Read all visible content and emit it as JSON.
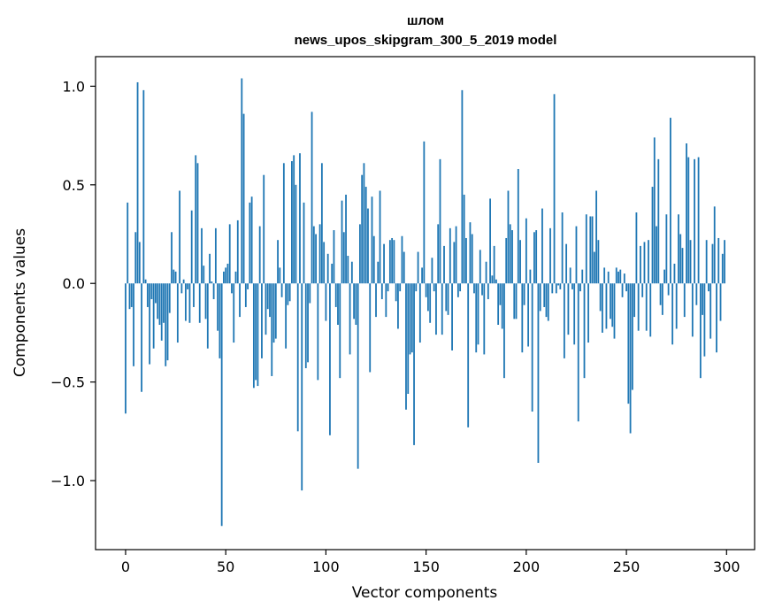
{
  "chart_data": {
    "type": "bar",
    "title": "шлом",
    "subtitle": "news_upos_skipgram_300_5_2019 model",
    "xlabel": "Vector components",
    "ylabel": "Components values",
    "xlim": [
      -15,
      314
    ],
    "ylim": [
      -1.35,
      1.15
    ],
    "xticks": [
      0,
      50,
      100,
      150,
      200,
      250,
      300
    ],
    "yticks": [
      -1.0,
      -0.5,
      0.0,
      0.5,
      1.0
    ],
    "ytick_labels": [
      "−1.0",
      "−0.5",
      "0.0",
      "0.5",
      "1.0"
    ],
    "bar_color": "#1f77b4",
    "grid": false,
    "x_start": 0,
    "values": [
      -0.66,
      0.41,
      -0.13,
      -0.12,
      -0.42,
      0.26,
      1.02,
      0.21,
      -0.55,
      0.98,
      0.02,
      -0.12,
      -0.41,
      -0.08,
      -0.33,
      -0.1,
      -0.18,
      -0.21,
      -0.29,
      -0.2,
      -0.42,
      -0.39,
      -0.15,
      0.26,
      0.07,
      0.06,
      -0.3,
      0.47,
      -0.05,
      0.02,
      -0.19,
      -0.03,
      -0.2,
      0.37,
      -0.12,
      0.65,
      0.61,
      -0.2,
      0.28,
      0.09,
      -0.18,
      -0.33,
      0.15,
      0.01,
      -0.08,
      0.28,
      -0.24,
      -0.38,
      -1.23,
      0.06,
      0.08,
      0.1,
      0.3,
      -0.05,
      -0.3,
      0.06,
      0.32,
      -0.17,
      1.04,
      0.86,
      -0.12,
      -0.03,
      0.41,
      0.44,
      -0.53,
      -0.49,
      -0.52,
      0.29,
      -0.38,
      0.55,
      -0.26,
      -0.13,
      -0.17,
      -0.47,
      -0.3,
      -0.28,
      0.22,
      0.08,
      -0.07,
      0.61,
      -0.33,
      -0.11,
      -0.09,
      0.62,
      0.65,
      0.5,
      -0.75,
      0.66,
      -1.05,
      0.41,
      -0.43,
      -0.4,
      -0.1,
      0.87,
      0.29,
      0.25,
      -0.49,
      0.3,
      0.61,
      0.21,
      -0.19,
      0.15,
      -0.77,
      0.1,
      0.27,
      -0.12,
      -0.21,
      -0.48,
      0.42,
      0.26,
      0.45,
      0.14,
      -0.36,
      0.11,
      -0.18,
      -0.21,
      -0.94,
      0.3,
      0.55,
      0.61,
      0.49,
      0.38,
      -0.45,
      0.44,
      0.24,
      -0.17,
      0.11,
      0.47,
      -0.08,
      0.2,
      -0.17,
      -0.04,
      0.22,
      0.23,
      0.22,
      -0.09,
      -0.23,
      -0.04,
      0.24,
      0.16,
      -0.64,
      -0.56,
      -0.36,
      -0.35,
      -0.82,
      -0.04,
      0.16,
      -0.3,
      0.08,
      0.72,
      -0.07,
      -0.14,
      -0.2,
      0.13,
      -0.04,
      -0.26,
      0.3,
      0.63,
      -0.26,
      0.19,
      -0.14,
      -0.16,
      0.28,
      -0.34,
      0.21,
      0.29,
      -0.07,
      -0.04,
      0.98,
      0.45,
      0.23,
      -0.73,
      0.31,
      0.25,
      -0.05,
      -0.35,
      -0.31,
      0.17,
      -0.06,
      -0.36,
      0.11,
      -0.08,
      0.43,
      0.04,
      0.19,
      0.02,
      -0.21,
      -0.11,
      -0.23,
      -0.48,
      0.23,
      0.47,
      0.3,
      0.27,
      -0.18,
      -0.18,
      0.58,
      0.22,
      -0.35,
      -0.11,
      0.33,
      -0.32,
      0.07,
      -0.65,
      0.26,
      0.27,
      -0.91,
      -0.14,
      0.38,
      -0.12,
      -0.17,
      -0.19,
      0.28,
      -0.05,
      0.96,
      -0.05,
      -0.01,
      -0.03,
      0.36,
      -0.38,
      0.2,
      -0.26,
      0.08,
      -0.03,
      -0.31,
      0.29,
      -0.7,
      -0.04,
      0.07,
      -0.48,
      0.35,
      -0.3,
      0.34,
      0.34,
      0.16,
      0.47,
      0.22,
      -0.14,
      -0.25,
      0.08,
      -0.23,
      0.06,
      -0.18,
      -0.22,
      -0.28,
      0.08,
      0.06,
      0.07,
      -0.07,
      0.05,
      -0.04,
      -0.61,
      -0.76,
      -0.54,
      -0.17,
      0.36,
      -0.24,
      0.19,
      -0.07,
      0.21,
      -0.24,
      0.22,
      -0.27,
      0.49,
      0.74,
      0.29,
      0.63,
      -0.11,
      -0.16,
      0.07,
      0.35,
      -0.06,
      0.84,
      -0.31,
      0.1,
      -0.23,
      0.35,
      0.25,
      0.18,
      -0.17,
      0.71,
      0.64,
      0.22,
      -0.27,
      0.63,
      -0.11,
      0.64,
      -0.48,
      -0.16,
      -0.37,
      0.22,
      -0.04,
      -0.28,
      0.2,
      0.39,
      -0.35,
      0.23,
      -0.19,
      0.15,
      0.22
    ]
  }
}
